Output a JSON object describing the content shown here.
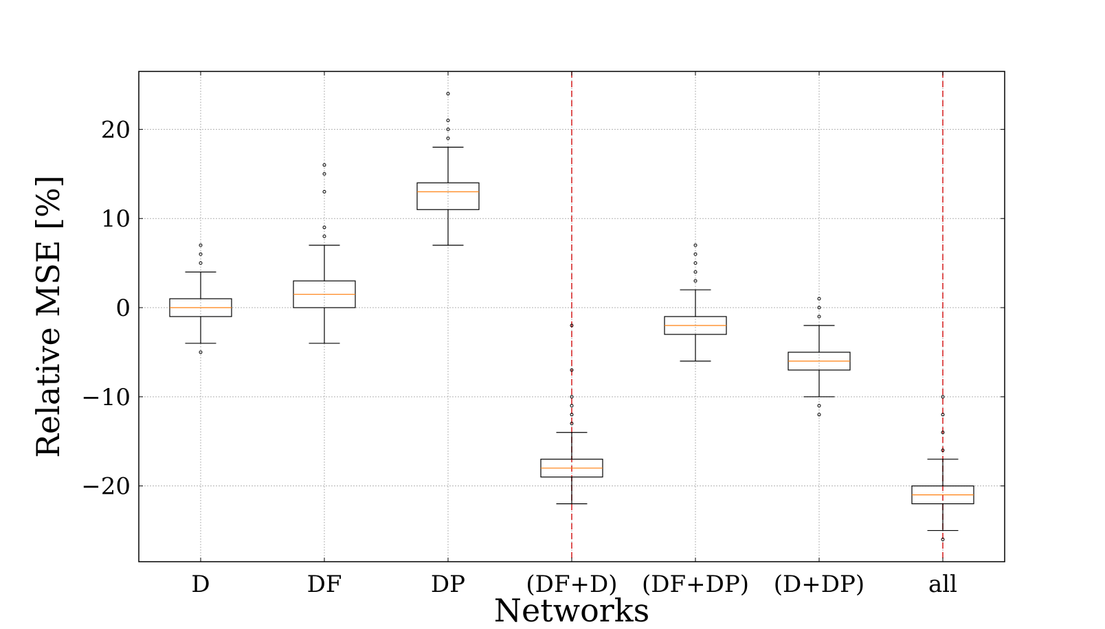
{
  "chart_data": {
    "type": "box",
    "title": "",
    "xlabel": "Networks",
    "ylabel": "Relative MSE [%]",
    "ylim": [
      -28.5,
      26.5
    ],
    "yticks": [
      -20,
      -10,
      0,
      10,
      20
    ],
    "ytick_labels": [
      "−20",
      "−10",
      "0",
      "10",
      "20"
    ],
    "grid": true,
    "categories": [
      "D",
      "DF",
      "DP",
      "(DF+D)",
      "(DF+DP)",
      "(D+DP)",
      "all"
    ],
    "boxes": [
      {
        "label": "D",
        "whisker_low": -4,
        "q1": -1,
        "median": 0,
        "q3": 1,
        "whisker_high": 4,
        "outliers": [
          -5,
          5,
          6,
          7
        ]
      },
      {
        "label": "DF",
        "whisker_low": -4,
        "q1": 0,
        "median": 1.5,
        "q3": 3,
        "whisker_high": 7,
        "outliers": [
          8,
          9,
          13,
          15,
          16
        ]
      },
      {
        "label": "DP",
        "whisker_low": 7,
        "q1": 11,
        "median": 13,
        "q3": 14,
        "whisker_high": 18,
        "outliers": [
          19,
          20,
          21,
          24
        ]
      },
      {
        "label": "(DF+D)",
        "whisker_low": -22,
        "q1": -19,
        "median": -18,
        "q3": -17,
        "whisker_high": -14,
        "outliers": [
          -2,
          -7,
          -10,
          -11,
          -12,
          -13
        ]
      },
      {
        "label": "(DF+DP)",
        "whisker_low": -6,
        "q1": -3,
        "median": -2,
        "q3": -1,
        "whisker_high": 2,
        "outliers": [
          3,
          4,
          5,
          6,
          7
        ]
      },
      {
        "label": "(D+DP)",
        "whisker_low": -10,
        "q1": -7,
        "median": -6,
        "q3": -5,
        "whisker_high": -2,
        "outliers": [
          -1,
          0,
          1,
          -11,
          -12
        ]
      },
      {
        "label": "all",
        "whisker_low": -25,
        "q1": -22,
        "median": -21,
        "q3": -20,
        "whisker_high": -17,
        "outliers": [
          -10,
          -12,
          -14,
          -16,
          -26
        ]
      }
    ],
    "reference_lines": [
      {
        "category": "(DF+D)",
        "style": "dashed",
        "color": "#d62728"
      },
      {
        "category": "all",
        "style": "dashed",
        "color": "#d62728"
      }
    ],
    "colors": {
      "box": "#000000",
      "median": "#ff7f0e",
      "grid": "#b0b0b0",
      "reference": "#d62728"
    }
  }
}
